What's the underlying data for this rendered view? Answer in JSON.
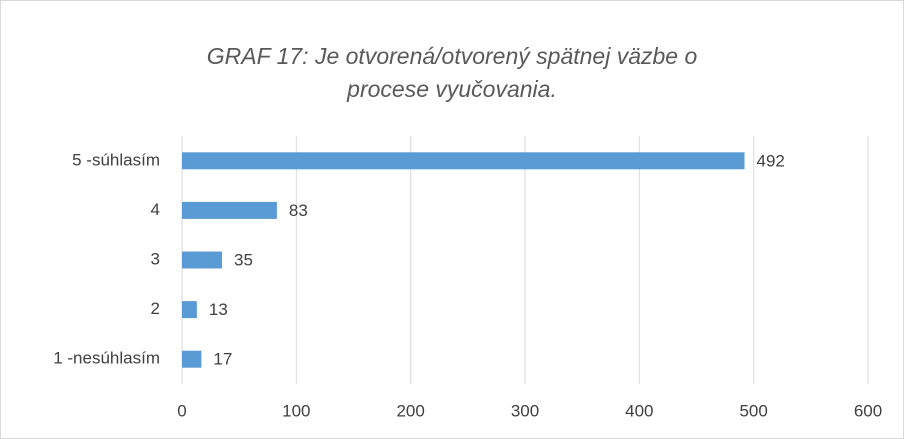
{
  "chart_data": {
    "type": "bar",
    "orientation": "horizontal",
    "title": "GRAF 17: Je otvorená/otvorený spätnej väzbe o procese vyučovania.",
    "categories": [
      "5 -súhlasím",
      "4",
      "3",
      "2",
      "1 -nesúhlasím"
    ],
    "values": [
      492,
      83,
      35,
      13,
      17
    ],
    "color": "#5b9bd5",
    "xlim": [
      0,
      600
    ],
    "xticks": [
      0,
      100,
      200,
      300,
      400,
      500,
      600
    ],
    "grid": true
  }
}
